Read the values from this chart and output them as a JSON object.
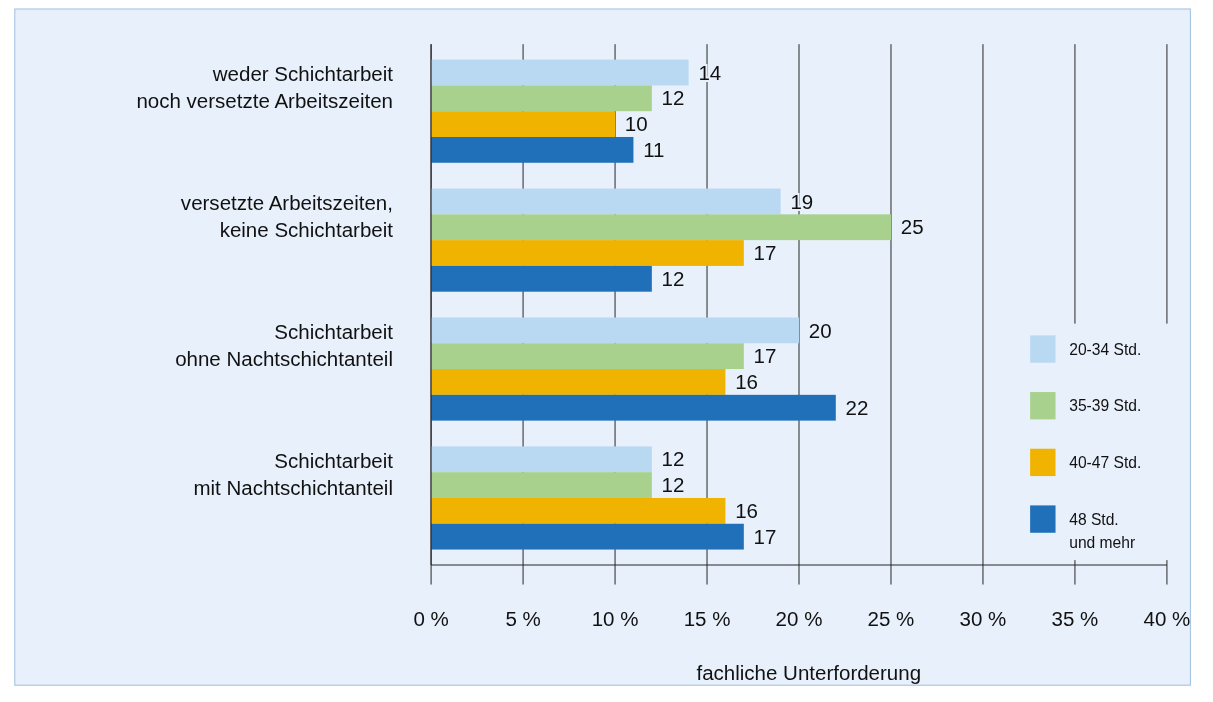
{
  "chart_data": {
    "type": "bar",
    "orientation": "horizontal",
    "xlabel": "fachliche Unterforderung",
    "categories": [
      "weder Schichtarbeit\nnoch versetzte Arbeitszeiten",
      "versetzte Arbeitszeiten,\nkeine Schichtarbeit",
      "Schichtarbeit\nohne Nachtschichtanteil",
      "Schichtarbeit\nmit Nachtschichtanteil"
    ],
    "series": [
      {
        "name": "20-34 Std.",
        "color": "#b9d9f3",
        "values": [
          14,
          19,
          20,
          12
        ]
      },
      {
        "name": "35-39 Std.",
        "color": "#a9d18e",
        "values": [
          12,
          25,
          17,
          12
        ]
      },
      {
        "name": "40-47 Std.",
        "color": "#f0b300",
        "values": [
          10,
          17,
          16,
          16
        ]
      },
      {
        "name": "48 Std.\nund mehr",
        "color": "#1f70b8",
        "values": [
          11,
          12,
          22,
          17
        ]
      }
    ],
    "xlim": [
      0,
      40
    ],
    "xticks": [
      {
        "value": 0,
        "label": "0 %"
      },
      {
        "value": 5,
        "label": "5 %"
      },
      {
        "value": 10,
        "label": "10 %"
      },
      {
        "value": 15,
        "label": "15 %"
      },
      {
        "value": 20,
        "label": "20 %"
      },
      {
        "value": 25,
        "label": "25 %"
      },
      {
        "value": 30,
        "label": "30 %"
      },
      {
        "value": 35,
        "label": "35 %"
      },
      {
        "value": 40,
        "label": "40 %"
      }
    ],
    "grid": "x",
    "legend": "right",
    "data_labels": true
  }
}
